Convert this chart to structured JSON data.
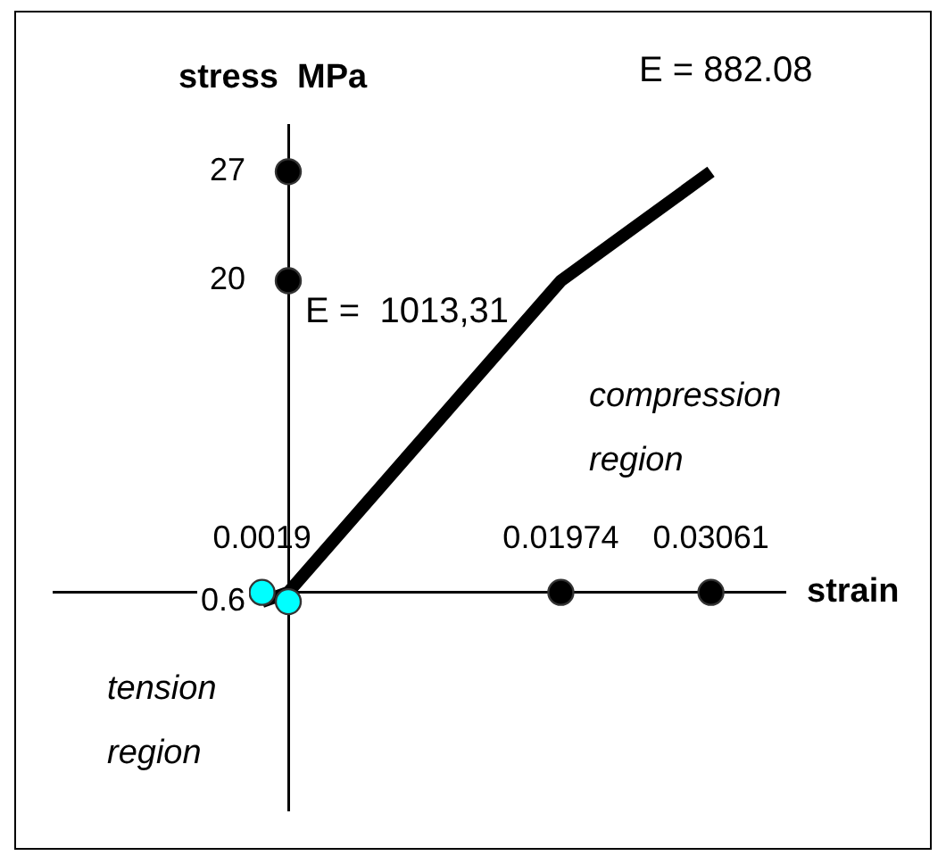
{
  "chart_data": {
    "type": "scatter",
    "xlabel": "strain",
    "ylabel": "stress  MPa",
    "xlim": [
      -0.017,
      0.036
    ],
    "ylim": [
      -14,
      30
    ],
    "grid": false,
    "legend": false,
    "xticks": [
      {
        "value": -0.0019,
        "label": "0.0019"
      },
      0.01974,
      0.03061
    ],
    "yticks": [
      27,
      20,
      {
        "value": -0.6,
        "label": "0.6"
      }
    ],
    "series": [
      {
        "type": "line",
        "color": "#000000",
        "x": [
          -0.0019,
          0,
          0.01974,
          0.03061
        ],
        "values": [
          -0.6,
          0,
          20,
          27
        ],
        "marker": "none"
      },
      {
        "color": "#000000",
        "x": [
          0,
          0,
          0.01974,
          0.03061
        ],
        "values": [
          27,
          20,
          0,
          0
        ],
        "marker": "circle"
      },
      {
        "color": "#00ffff",
        "x": [
          -0.0019,
          0
        ],
        "values": [
          0,
          -0.6
        ],
        "marker": "circle"
      }
    ],
    "annotations": [
      "E = 882.08",
      "E =  1013,31",
      "compression region",
      "tension region"
    ]
  }
}
